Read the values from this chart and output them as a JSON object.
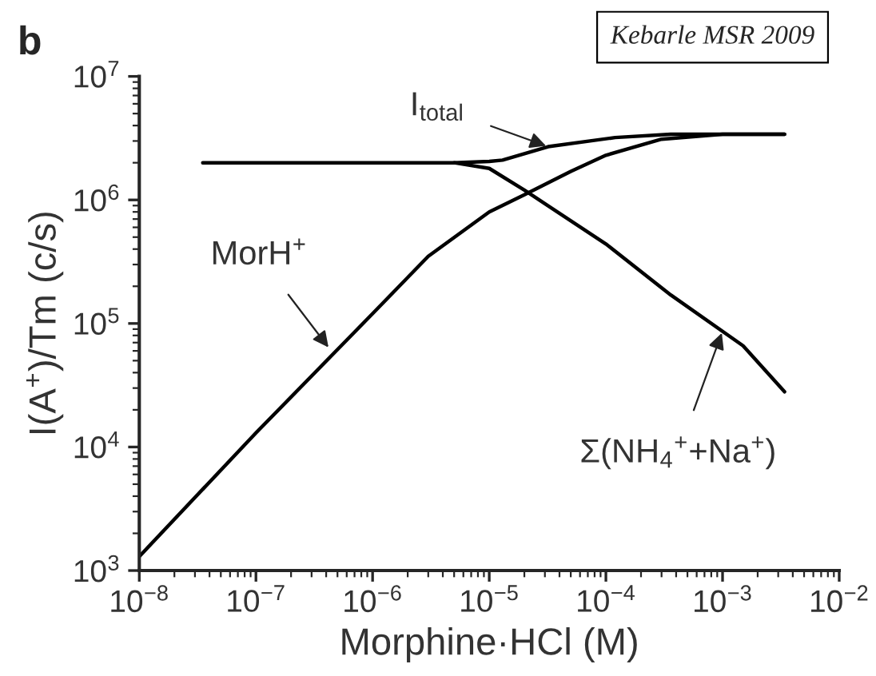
{
  "chart_data": {
    "type": "line",
    "xlabel": "Morphine·HCl (M)",
    "ylabel": "I(A$^{+}$)/Tm (c/s)",
    "log": "xy",
    "grid": false,
    "legend": false,
    "marker": "none",
    "line_style": "solid",
    "xlim": [
      1e-08,
      0.01
    ],
    "ylim": [
      1000,
      10000000
    ],
    "xticks": [
      {
        "value": 1e-08,
        "label": "10$^{−8}$"
      },
      {
        "value": 1e-07,
        "label": "10$^{−7}$"
      },
      {
        "value": 1e-06,
        "label": "10$^{−6}$"
      },
      {
        "value": 1e-05,
        "label": "10$^{−5}$"
      },
      {
        "value": 0.0001,
        "label": "10$^{−4}$"
      },
      {
        "value": 0.001,
        "label": "10$^{−3}$"
      },
      {
        "value": 0.01,
        "label": "10$^{−2}$"
      }
    ],
    "yticks": [
      {
        "value": 1000,
        "label": "10$^{3}$"
      },
      {
        "value": 10000,
        "label": "10$^{4}$"
      },
      {
        "value": 100000,
        "label": "10$^{5}$"
      },
      {
        "value": 1000000,
        "label": "10$^{6}$"
      },
      {
        "value": 10000000,
        "label": "10$^{7}$"
      }
    ],
    "series": [
      {
        "color": "#000000",
        "x": [
          1e-08,
          1e-07,
          1e-06,
          3e-06,
          1e-05,
          2e-05,
          5e-05,
          0.0001,
          0.0003,
          0.001,
          0.0034
        ],
        "values": [
          1300,
          13000,
          120000,
          350000,
          800000,
          1100000,
          1700000,
          2300000,
          3100000,
          3400000,
          3400000
        ]
      },
      {
        "color": "#000000",
        "x": [
          3.5e-08,
          5e-06,
          1e-05,
          2e-05,
          0.0001,
          0.00036,
          0.0015,
          0.0034
        ],
        "values": [
          2000000,
          2000000,
          1800000,
          1200000,
          440000,
          170000,
          66000,
          28000
        ]
      },
      {
        "color": "#000000",
        "x": [
          5e-06,
          1e-05,
          1.3e-05,
          3.2e-05,
          0.00012,
          0.00036,
          0.0034
        ],
        "values": [
          2000000,
          2050000,
          2100000,
          2700000,
          3200000,
          3400000,
          3400000
        ]
      }
    ],
    "annotations": [
      "b",
      "Kebarle MSR 2009",
      {
        "text": "I$_{total}$",
        "x": 3.2e-05,
        "y": 2700000
      },
      {
        "text": "MorH$^{+}$",
        "x": 4.3e-07,
        "y": 62000
      },
      {
        "text": "Σ(NH$_{4}$$^{+}$+Na$^{+}$)",
        "x": 0.001,
        "y": 87000
      }
    ]
  }
}
